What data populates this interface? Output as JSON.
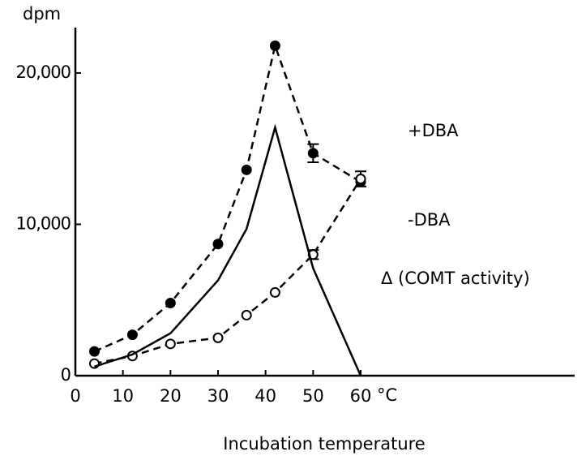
{
  "chart_data": {
    "type": "line",
    "y_label": "dpm",
    "x_label": "Incubation temperature",
    "x_unit": "°C",
    "x": [
      4,
      12,
      20,
      30,
      36,
      42,
      50,
      60
    ],
    "series": [
      {
        "name": "+DBA",
        "color": "#000000",
        "dash": true,
        "marker": "filled",
        "values": [
          1600,
          2700,
          4800,
          8700,
          13600,
          21800,
          14700,
          12800
        ],
        "errors": [
          null,
          null,
          null,
          null,
          null,
          null,
          600,
          null
        ]
      },
      {
        "name": "-DBA",
        "color": "#000000",
        "dash": true,
        "marker": "open",
        "values": [
          800,
          1300,
          2100,
          2500,
          4000,
          5500,
          8000,
          13000
        ],
        "errors": [
          null,
          null,
          null,
          null,
          null,
          null,
          300,
          500
        ]
      },
      {
        "name": "Δ (COMT activity)",
        "color": "#000000",
        "dash": false,
        "marker": null,
        "values": [
          600,
          1400,
          2800,
          6300,
          9700,
          16400,
          7100,
          0
        ]
      }
    ],
    "xlim": [
      0,
      105
    ],
    "xticks": [
      0,
      10,
      20,
      30,
      40,
      50,
      60
    ],
    "ylim": [
      0,
      23000
    ],
    "yticks": [
      0,
      {
        "value": 10000,
        "label": "10,000"
      },
      {
        "value": 20000,
        "label": "20,000"
      }
    ],
    "grid": false
  }
}
